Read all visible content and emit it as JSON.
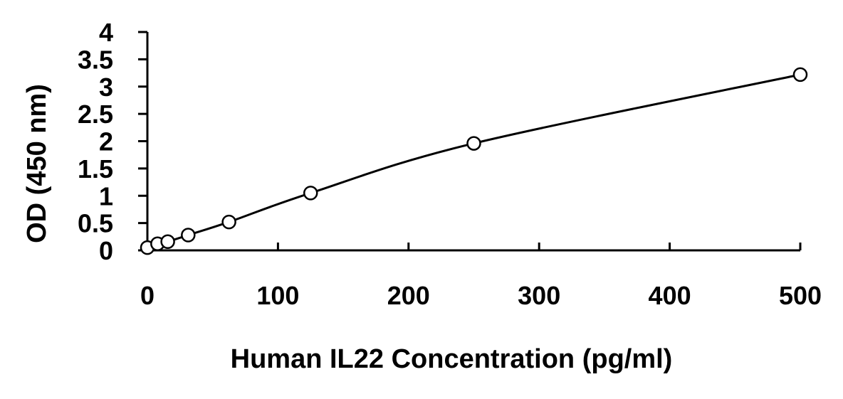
{
  "chart_data": {
    "type": "scatter",
    "title": "",
    "xlabel": "Human IL22 Concentration (pg/ml)",
    "ylabel": "OD (450 nm)",
    "xlim": [
      0,
      500
    ],
    "ylim": [
      0,
      4
    ],
    "x_ticks": [
      "0",
      "100",
      "200",
      "300",
      "400",
      "500"
    ],
    "y_ticks": [
      "0",
      "0.5",
      "1",
      "1.5",
      "2",
      "2.5",
      "3",
      "3.5",
      "4"
    ],
    "grid": false,
    "legend": "none",
    "series": [
      {
        "x": [
          0,
          7.8,
          15.6,
          31.25,
          62.5,
          125,
          250,
          500
        ],
        "y": [
          0.05,
          0.12,
          0.16,
          0.28,
          0.52,
          1.05,
          1.96,
          3.22
        ]
      }
    ],
    "fit_curve": "4PL",
    "marker": "open-circle",
    "colors": {
      "line": "#000000",
      "marker_stroke": "#000000",
      "marker_fill": "#ffffff"
    }
  }
}
